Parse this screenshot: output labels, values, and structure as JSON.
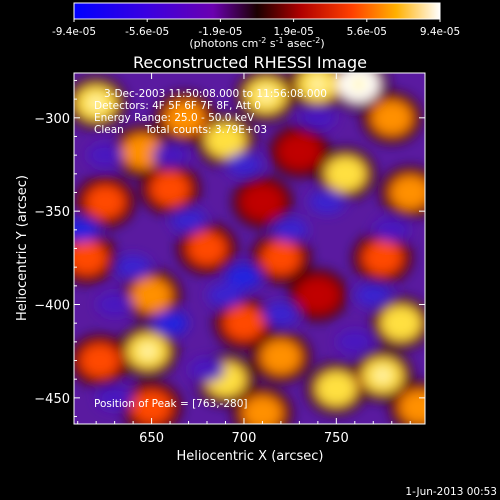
{
  "chart_data": {
    "type": "heatmap",
    "title": "Reconstructed RHESSI Image",
    "xlabel": "Heliocentric X (arcsec)",
    "ylabel": "Heliocentric Y (arcsec)",
    "xlim": [
      608,
      798
    ],
    "ylim": [
      -464,
      -276
    ],
    "x_ticks": [
      650,
      700,
      750
    ],
    "y_ticks": [
      -300,
      -350,
      -400,
      -450
    ],
    "colorbar": {
      "range": [
        -9.4e-05,
        9.4e-05
      ],
      "tick_labels": [
        "-9.4e-05",
        "-5.6e-05",
        "-1.9e-05",
        "1.9e-05",
        "5.6e-05",
        "9.4e-05"
      ],
      "unit_label": "(photons cm",
      "unit_sup1": "-2",
      "unit_mid": " s",
      "unit_sup2": "-1",
      "unit_mid2": " asec",
      "unit_sup3": "-2",
      "unit_end": ")"
    },
    "annotations": {
      "time": "3-Dec-2003 11:50:08.000 to 11:56:08.000",
      "detectors": "Detectors: 4F 5F 6F 7F 8F, Att 0",
      "energy": "Energy Range: 25.0 - 50.0 keV",
      "clean_label": "Clean",
      "total_counts": "Total counts: 3.79E+03",
      "peak": "Position of Peak = [763,-280]"
    },
    "hot_spots": [
      {
        "x": 620,
        "y": -292,
        "v": 0.9
      },
      {
        "x": 645,
        "y": -318,
        "v": 0.8
      },
      {
        "x": 668,
        "y": -300,
        "v": 0.75
      },
      {
        "x": 690,
        "y": -312,
        "v": 0.85
      },
      {
        "x": 712,
        "y": -288,
        "v": 0.9
      },
      {
        "x": 740,
        "y": -282,
        "v": 0.9
      },
      {
        "x": 762,
        "y": -282,
        "v": 1.0
      },
      {
        "x": 780,
        "y": -300,
        "v": 0.8
      },
      {
        "x": 755,
        "y": -330,
        "v": 0.85
      },
      {
        "x": 790,
        "y": -340,
        "v": 0.75
      },
      {
        "x": 625,
        "y": -345,
        "v": 0.65
      },
      {
        "x": 660,
        "y": -338,
        "v": 0.7
      },
      {
        "x": 710,
        "y": -345,
        "v": 0.55
      },
      {
        "x": 730,
        "y": -318,
        "v": 0.5
      },
      {
        "x": 615,
        "y": -375,
        "v": 0.7
      },
      {
        "x": 680,
        "y": -370,
        "v": 0.6
      },
      {
        "x": 720,
        "y": -375,
        "v": 0.65
      },
      {
        "x": 775,
        "y": -375,
        "v": 0.7
      },
      {
        "x": 650,
        "y": -395,
        "v": 0.75
      },
      {
        "x": 700,
        "y": -410,
        "v": 0.7
      },
      {
        "x": 740,
        "y": -395,
        "v": 0.55
      },
      {
        "x": 785,
        "y": -410,
        "v": 0.85
      },
      {
        "x": 622,
        "y": -430,
        "v": 0.7
      },
      {
        "x": 648,
        "y": -425,
        "v": 0.9
      },
      {
        "x": 690,
        "y": -440,
        "v": 0.85
      },
      {
        "x": 720,
        "y": -428,
        "v": 0.8
      },
      {
        "x": 750,
        "y": -445,
        "v": 0.85
      },
      {
        "x": 775,
        "y": -438,
        "v": 0.9
      },
      {
        "x": 650,
        "y": -455,
        "v": 0.7
      },
      {
        "x": 710,
        "y": -458,
        "v": 0.75
      },
      {
        "x": 795,
        "y": -455,
        "v": 0.8
      }
    ],
    "cold_spots": [
      {
        "x": 612,
        "y": -360,
        "v": -0.85
      },
      {
        "x": 640,
        "y": -380,
        "v": -0.8
      },
      {
        "x": 670,
        "y": -355,
        "v": -0.75
      },
      {
        "x": 700,
        "y": -385,
        "v": -0.85
      },
      {
        "x": 725,
        "y": -360,
        "v": -0.8
      },
      {
        "x": 745,
        "y": -345,
        "v": -0.75
      },
      {
        "x": 770,
        "y": -395,
        "v": -0.8
      },
      {
        "x": 660,
        "y": -410,
        "v": -0.9
      },
      {
        "x": 720,
        "y": -405,
        "v": -0.75
      },
      {
        "x": 630,
        "y": -400,
        "v": -0.7
      },
      {
        "x": 690,
        "y": -395,
        "v": -0.8
      },
      {
        "x": 760,
        "y": -420,
        "v": -0.7
      },
      {
        "x": 740,
        "y": -300,
        "v": -0.7
      },
      {
        "x": 700,
        "y": -325,
        "v": -0.75
      },
      {
        "x": 660,
        "y": -320,
        "v": -0.6
      },
      {
        "x": 625,
        "y": -320,
        "v": -0.55
      },
      {
        "x": 780,
        "y": -360,
        "v": -0.6
      },
      {
        "x": 680,
        "y": -435,
        "v": -0.6
      },
      {
        "x": 630,
        "y": -450,
        "v": -0.5
      }
    ]
  },
  "footer": {
    "date": "1-Jun-2013 00:53"
  }
}
